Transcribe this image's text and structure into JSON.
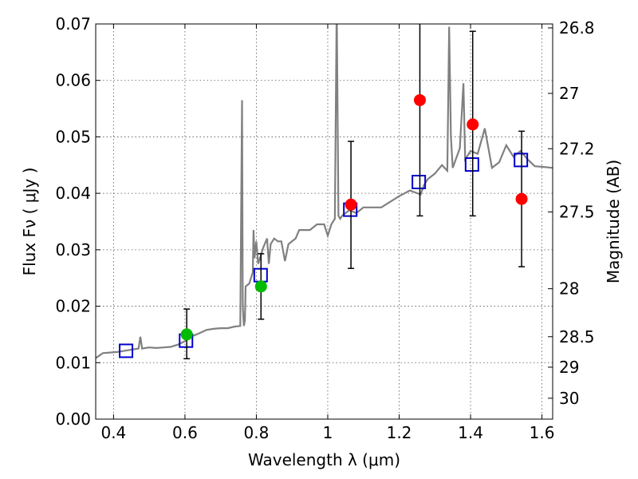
{
  "chart_data": {
    "type": "scatter",
    "xlabel": "Wavelength  λ (μm)",
    "ylabel": "Flux  Fν  ( μJy )",
    "ylabel_right": "Magnitude (AB)",
    "xlim": [
      0.35,
      1.63
    ],
    "ylim": [
      0.0,
      0.07
    ],
    "grid": true,
    "x_ticks": [
      0.4,
      0.6,
      0.8,
      1.0,
      1.2,
      1.4,
      1.6
    ],
    "x_tick_labels": [
      "0.4",
      "0.6",
      "0.8",
      "1",
      "1.2",
      "1.4",
      "1.6"
    ],
    "y_ticks": [
      0.0,
      0.01,
      0.02,
      0.03,
      0.04,
      0.05,
      0.06,
      0.07
    ],
    "y_tick_labels": [
      "0.00",
      "0.01",
      "0.02",
      "0.03",
      "0.04",
      "0.05",
      "0.06",
      "0.07"
    ],
    "right_axis_ticks": [
      {
        "flux": 0.0693,
        "label": "26.8"
      },
      {
        "flux": 0.0577,
        "label": "27"
      },
      {
        "flux": 0.0479,
        "label": "27.2"
      },
      {
        "flux": 0.0367,
        "label": "27.5"
      },
      {
        "flux": 0.0231,
        "label": "28"
      },
      {
        "flux": 0.0146,
        "label": "28.5"
      },
      {
        "flux": 0.0092,
        "label": "29"
      },
      {
        "flux": 0.0037,
        "label": "30"
      }
    ],
    "series": [
      {
        "style": "model_spectrum_line",
        "color": "#808080",
        "x": [
          0.35,
          0.37,
          0.39,
          0.41,
          0.43,
          0.45,
          0.47,
          0.475,
          0.48,
          0.5,
          0.52,
          0.54,
          0.56,
          0.58,
          0.6,
          0.62,
          0.64,
          0.66,
          0.68,
          0.7,
          0.72,
          0.74,
          0.755,
          0.76,
          0.762,
          0.765,
          0.768,
          0.77,
          0.78,
          0.79,
          0.792,
          0.795,
          0.8,
          0.805,
          0.81,
          0.82,
          0.83,
          0.835,
          0.84,
          0.85,
          0.86,
          0.87,
          0.88,
          0.89,
          0.9,
          0.91,
          0.92,
          0.95,
          0.97,
          0.99,
          1.0,
          1.01,
          1.02,
          1.025,
          1.03,
          1.035,
          1.04,
          1.06,
          1.08,
          1.1,
          1.15,
          1.2,
          1.23,
          1.26,
          1.27,
          1.28,
          1.3,
          1.32,
          1.335,
          1.34,
          1.345,
          1.35,
          1.37,
          1.38,
          1.385,
          1.39,
          1.4,
          1.42,
          1.44,
          1.46,
          1.48,
          1.5,
          1.52,
          1.54,
          1.56,
          1.58,
          1.6,
          1.63
        ],
        "y": [
          0.0108,
          0.0117,
          0.0118,
          0.0119,
          0.0121,
          0.0123,
          0.0125,
          0.0146,
          0.0125,
          0.0127,
          0.0126,
          0.0127,
          0.0128,
          0.0132,
          0.0138,
          0.0147,
          0.0152,
          0.0158,
          0.016,
          0.0161,
          0.0161,
          0.0164,
          0.0165,
          0.0565,
          0.02,
          0.0165,
          0.0175,
          0.0235,
          0.024,
          0.026,
          0.0335,
          0.0285,
          0.0315,
          0.0275,
          0.0285,
          0.0305,
          0.032,
          0.0275,
          0.031,
          0.032,
          0.0315,
          0.0315,
          0.028,
          0.031,
          0.0315,
          0.032,
          0.0335,
          0.0335,
          0.0345,
          0.0345,
          0.0325,
          0.0345,
          0.0355,
          0.0735,
          0.036,
          0.0355,
          0.036,
          0.037,
          0.0365,
          0.0375,
          0.0375,
          0.0395,
          0.0405,
          0.0398,
          0.0415,
          0.0425,
          0.0435,
          0.045,
          0.044,
          0.0695,
          0.05,
          0.0445,
          0.048,
          0.0595,
          0.046,
          0.0465,
          0.0475,
          0.047,
          0.0515,
          0.0445,
          0.0455,
          0.0485,
          0.0465,
          0.0475,
          0.046,
          0.0448,
          0.0447,
          0.0445
        ]
      },
      {
        "style": "open_blue_squares",
        "color": "#0000cc",
        "x": [
          0.435,
          0.603,
          0.812,
          1.063,
          1.255,
          1.404,
          1.541
        ],
        "y": [
          0.0121,
          0.0139,
          0.0255,
          0.0371,
          0.042,
          0.0451,
          0.0459
        ]
      },
      {
        "style": "green_points_with_errorbars",
        "color": "#00bb00",
        "x": [
          0.605,
          0.813
        ],
        "y": [
          0.015,
          0.0235
        ],
        "err_low": [
          0.0043,
          0.0058
        ],
        "err_high": [
          0.0045,
          0.0058
        ]
      },
      {
        "style": "red_points_with_errorbars",
        "color": "#ff0000",
        "x": [
          1.065,
          1.258,
          1.406,
          1.543
        ],
        "y": [
          0.038,
          0.0565,
          0.0522,
          0.039
        ],
        "err_low": [
          0.0113,
          0.0205,
          0.0162,
          0.012
        ],
        "err_high": [
          0.0112,
          0.0185,
          0.0165,
          0.012
        ]
      }
    ]
  }
}
